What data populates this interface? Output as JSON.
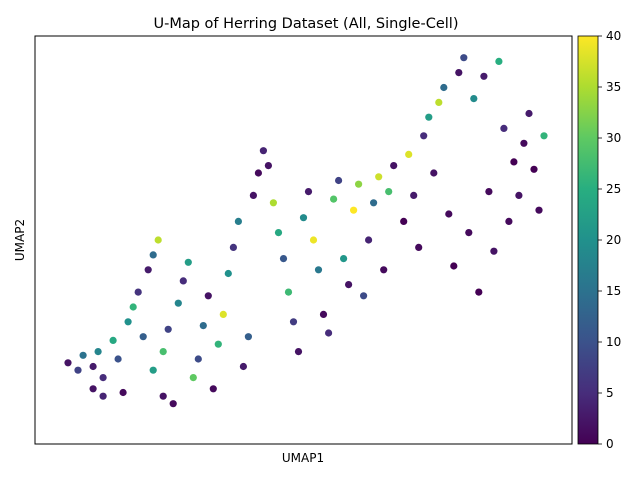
{
  "chart_data": {
    "type": "scatter",
    "title": "U-Map of Herring Dataset (All, Single-Cell)",
    "xlabel": "UMAP1",
    "ylabel": "UMAP2",
    "x_ticks_visible": false,
    "y_ticks_visible": false,
    "xlim": [
      0,
      1
    ],
    "ylim": [
      0,
      1
    ],
    "grid": false,
    "legend": "none",
    "colorbar": {
      "colormap": "viridis",
      "range": [
        0,
        40
      ],
      "ticks": [
        "0",
        "5",
        "10",
        "15",
        "20",
        "25",
        "30",
        "35",
        "40"
      ],
      "placement": "right"
    },
    "colormap_stops": [
      "#440154",
      "#472d7b",
      "#3b528b",
      "#2c728e",
      "#21918c",
      "#28ae80",
      "#5ec962",
      "#addc30",
      "#fde725"
    ],
    "marker_color_note": "point color encodes value on 0-40 scale",
    "points": [
      {
        "x": 0.03,
        "y": 0.17,
        "v": 2
      },
      {
        "x": 0.05,
        "y": 0.15,
        "v": 8
      },
      {
        "x": 0.06,
        "y": 0.19,
        "v": 15
      },
      {
        "x": 0.08,
        "y": 0.16,
        "v": 3
      },
      {
        "x": 0.09,
        "y": 0.2,
        "v": 18
      },
      {
        "x": 0.1,
        "y": 0.13,
        "v": 5
      },
      {
        "x": 0.12,
        "y": 0.23,
        "v": 24
      },
      {
        "x": 0.13,
        "y": 0.18,
        "v": 10
      },
      {
        "x": 0.08,
        "y": 0.1,
        "v": 2
      },
      {
        "x": 0.1,
        "y": 0.08,
        "v": 4
      },
      {
        "x": 0.14,
        "y": 0.09,
        "v": 1
      },
      {
        "x": 0.15,
        "y": 0.28,
        "v": 20
      },
      {
        "x": 0.16,
        "y": 0.32,
        "v": 26
      },
      {
        "x": 0.17,
        "y": 0.36,
        "v": 6
      },
      {
        "x": 0.18,
        "y": 0.24,
        "v": 12
      },
      {
        "x": 0.19,
        "y": 0.42,
        "v": 3
      },
      {
        "x": 0.2,
        "y": 0.46,
        "v": 14
      },
      {
        "x": 0.21,
        "y": 0.5,
        "v": 36
      },
      {
        "x": 0.2,
        "y": 0.15,
        "v": 22
      },
      {
        "x": 0.22,
        "y": 0.2,
        "v": 28
      },
      {
        "x": 0.23,
        "y": 0.26,
        "v": 8
      },
      {
        "x": 0.22,
        "y": 0.08,
        "v": 2
      },
      {
        "x": 0.24,
        "y": 0.06,
        "v": 1
      },
      {
        "x": 0.25,
        "y": 0.33,
        "v": 18
      },
      {
        "x": 0.26,
        "y": 0.39,
        "v": 5
      },
      {
        "x": 0.27,
        "y": 0.44,
        "v": 22
      },
      {
        "x": 0.28,
        "y": 0.13,
        "v": 30
      },
      {
        "x": 0.29,
        "y": 0.18,
        "v": 9
      },
      {
        "x": 0.3,
        "y": 0.27,
        "v": 14
      },
      {
        "x": 0.31,
        "y": 0.35,
        "v": 2
      },
      {
        "x": 0.32,
        "y": 0.1,
        "v": 1
      },
      {
        "x": 0.33,
        "y": 0.22,
        "v": 26
      },
      {
        "x": 0.34,
        "y": 0.3,
        "v": 38
      },
      {
        "x": 0.35,
        "y": 0.41,
        "v": 20
      },
      {
        "x": 0.36,
        "y": 0.48,
        "v": 6
      },
      {
        "x": 0.37,
        "y": 0.55,
        "v": 17
      },
      {
        "x": 0.38,
        "y": 0.16,
        "v": 3
      },
      {
        "x": 0.39,
        "y": 0.24,
        "v": 12
      },
      {
        "x": 0.4,
        "y": 0.62,
        "v": 2
      },
      {
        "x": 0.41,
        "y": 0.68,
        "v": 1
      },
      {
        "x": 0.42,
        "y": 0.74,
        "v": 4
      },
      {
        "x": 0.43,
        "y": 0.7,
        "v": 2
      },
      {
        "x": 0.44,
        "y": 0.6,
        "v": 35
      },
      {
        "x": 0.45,
        "y": 0.52,
        "v": 24
      },
      {
        "x": 0.46,
        "y": 0.45,
        "v": 11
      },
      {
        "x": 0.47,
        "y": 0.36,
        "v": 27
      },
      {
        "x": 0.48,
        "y": 0.28,
        "v": 7
      },
      {
        "x": 0.49,
        "y": 0.2,
        "v": 2
      },
      {
        "x": 0.5,
        "y": 0.56,
        "v": 19
      },
      {
        "x": 0.51,
        "y": 0.63,
        "v": 3
      },
      {
        "x": 0.52,
        "y": 0.5,
        "v": 39
      },
      {
        "x": 0.53,
        "y": 0.42,
        "v": 16
      },
      {
        "x": 0.54,
        "y": 0.3,
        "v": 1
      },
      {
        "x": 0.55,
        "y": 0.25,
        "v": 5
      },
      {
        "x": 0.56,
        "y": 0.61,
        "v": 29
      },
      {
        "x": 0.57,
        "y": 0.66,
        "v": 8
      },
      {
        "x": 0.58,
        "y": 0.45,
        "v": 21
      },
      {
        "x": 0.59,
        "y": 0.38,
        "v": 2
      },
      {
        "x": 0.6,
        "y": 0.58,
        "v": 40
      },
      {
        "x": 0.61,
        "y": 0.65,
        "v": 33
      },
      {
        "x": 0.62,
        "y": 0.35,
        "v": 9
      },
      {
        "x": 0.63,
        "y": 0.5,
        "v": 4
      },
      {
        "x": 0.64,
        "y": 0.6,
        "v": 14
      },
      {
        "x": 0.65,
        "y": 0.67,
        "v": 37
      },
      {
        "x": 0.66,
        "y": 0.42,
        "v": 1
      },
      {
        "x": 0.67,
        "y": 0.63,
        "v": 28
      },
      {
        "x": 0.68,
        "y": 0.7,
        "v": 2
      },
      {
        "x": 0.7,
        "y": 0.55,
        "v": 0
      },
      {
        "x": 0.71,
        "y": 0.73,
        "v": 38
      },
      {
        "x": 0.72,
        "y": 0.62,
        "v": 3
      },
      {
        "x": 0.73,
        "y": 0.48,
        "v": 1
      },
      {
        "x": 0.74,
        "y": 0.78,
        "v": 5
      },
      {
        "x": 0.75,
        "y": 0.83,
        "v": 22
      },
      {
        "x": 0.76,
        "y": 0.68,
        "v": 2
      },
      {
        "x": 0.77,
        "y": 0.87,
        "v": 36
      },
      {
        "x": 0.78,
        "y": 0.91,
        "v": 14
      },
      {
        "x": 0.79,
        "y": 0.57,
        "v": 1
      },
      {
        "x": 0.8,
        "y": 0.43,
        "v": 0
      },
      {
        "x": 0.81,
        "y": 0.95,
        "v": 2
      },
      {
        "x": 0.82,
        "y": 0.99,
        "v": 9
      },
      {
        "x": 0.83,
        "y": 0.52,
        "v": 1
      },
      {
        "x": 0.84,
        "y": 0.88,
        "v": 19
      },
      {
        "x": 0.85,
        "y": 0.36,
        "v": 0
      },
      {
        "x": 0.86,
        "y": 0.94,
        "v": 3
      },
      {
        "x": 0.87,
        "y": 0.63,
        "v": 1
      },
      {
        "x": 0.88,
        "y": 0.47,
        "v": 2
      },
      {
        "x": 0.89,
        "y": 0.98,
        "v": 25
      },
      {
        "x": 0.9,
        "y": 0.8,
        "v": 5
      },
      {
        "x": 0.91,
        "y": 0.55,
        "v": 1
      },
      {
        "x": 0.92,
        "y": 0.71,
        "v": 0
      },
      {
        "x": 0.93,
        "y": 0.62,
        "v": 2
      },
      {
        "x": 0.94,
        "y": 0.76,
        "v": 1
      },
      {
        "x": 0.95,
        "y": 0.84,
        "v": 3
      },
      {
        "x": 0.96,
        "y": 0.69,
        "v": 0
      },
      {
        "x": 0.97,
        "y": 0.58,
        "v": 1
      },
      {
        "x": 0.98,
        "y": 0.78,
        "v": 26
      }
    ]
  }
}
